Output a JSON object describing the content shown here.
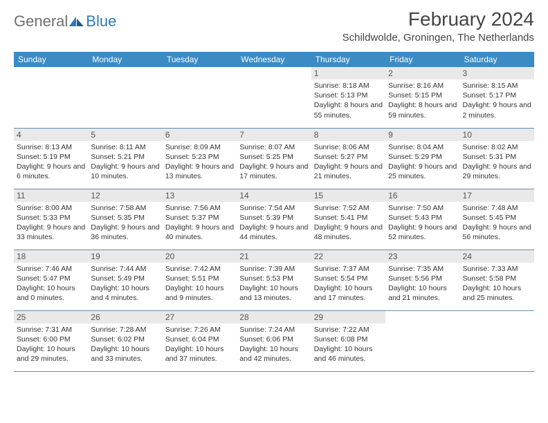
{
  "logo": {
    "general": "General",
    "blue": "Blue"
  },
  "title": "February 2024",
  "location": "Schildwolde, Groningen, The Netherlands",
  "colors": {
    "header_bg": "#3b8bc5",
    "header_fg": "#ffffff",
    "daynum_bg": "#e9e9e9",
    "text": "#333333",
    "logo_gray": "#6f6f6f",
    "logo_blue": "#2f79b9",
    "rule": "#6a8aa5"
  },
  "day_headers": [
    "Sunday",
    "Monday",
    "Tuesday",
    "Wednesday",
    "Thursday",
    "Friday",
    "Saturday"
  ],
  "weeks": [
    [
      null,
      null,
      null,
      null,
      {
        "n": "1",
        "sr": "8:18 AM",
        "ss": "5:13 PM",
        "dl": "8 hours and 55 minutes."
      },
      {
        "n": "2",
        "sr": "8:16 AM",
        "ss": "5:15 PM",
        "dl": "8 hours and 59 minutes."
      },
      {
        "n": "3",
        "sr": "8:15 AM",
        "ss": "5:17 PM",
        "dl": "9 hours and 2 minutes."
      }
    ],
    [
      {
        "n": "4",
        "sr": "8:13 AM",
        "ss": "5:19 PM",
        "dl": "9 hours and 6 minutes."
      },
      {
        "n": "5",
        "sr": "8:11 AM",
        "ss": "5:21 PM",
        "dl": "9 hours and 10 minutes."
      },
      {
        "n": "6",
        "sr": "8:09 AM",
        "ss": "5:23 PM",
        "dl": "9 hours and 13 minutes."
      },
      {
        "n": "7",
        "sr": "8:07 AM",
        "ss": "5:25 PM",
        "dl": "9 hours and 17 minutes."
      },
      {
        "n": "8",
        "sr": "8:06 AM",
        "ss": "5:27 PM",
        "dl": "9 hours and 21 minutes."
      },
      {
        "n": "9",
        "sr": "8:04 AM",
        "ss": "5:29 PM",
        "dl": "9 hours and 25 minutes."
      },
      {
        "n": "10",
        "sr": "8:02 AM",
        "ss": "5:31 PM",
        "dl": "9 hours and 29 minutes."
      }
    ],
    [
      {
        "n": "11",
        "sr": "8:00 AM",
        "ss": "5:33 PM",
        "dl": "9 hours and 33 minutes."
      },
      {
        "n": "12",
        "sr": "7:58 AM",
        "ss": "5:35 PM",
        "dl": "9 hours and 36 minutes."
      },
      {
        "n": "13",
        "sr": "7:56 AM",
        "ss": "5:37 PM",
        "dl": "9 hours and 40 minutes."
      },
      {
        "n": "14",
        "sr": "7:54 AM",
        "ss": "5:39 PM",
        "dl": "9 hours and 44 minutes."
      },
      {
        "n": "15",
        "sr": "7:52 AM",
        "ss": "5:41 PM",
        "dl": "9 hours and 48 minutes."
      },
      {
        "n": "16",
        "sr": "7:50 AM",
        "ss": "5:43 PM",
        "dl": "9 hours and 52 minutes."
      },
      {
        "n": "17",
        "sr": "7:48 AM",
        "ss": "5:45 PM",
        "dl": "9 hours and 56 minutes."
      }
    ],
    [
      {
        "n": "18",
        "sr": "7:46 AM",
        "ss": "5:47 PM",
        "dl": "10 hours and 0 minutes."
      },
      {
        "n": "19",
        "sr": "7:44 AM",
        "ss": "5:49 PM",
        "dl": "10 hours and 4 minutes."
      },
      {
        "n": "20",
        "sr": "7:42 AM",
        "ss": "5:51 PM",
        "dl": "10 hours and 9 minutes."
      },
      {
        "n": "21",
        "sr": "7:39 AM",
        "ss": "5:53 PM",
        "dl": "10 hours and 13 minutes."
      },
      {
        "n": "22",
        "sr": "7:37 AM",
        "ss": "5:54 PM",
        "dl": "10 hours and 17 minutes."
      },
      {
        "n": "23",
        "sr": "7:35 AM",
        "ss": "5:56 PM",
        "dl": "10 hours and 21 minutes."
      },
      {
        "n": "24",
        "sr": "7:33 AM",
        "ss": "5:58 PM",
        "dl": "10 hours and 25 minutes."
      }
    ],
    [
      {
        "n": "25",
        "sr": "7:31 AM",
        "ss": "6:00 PM",
        "dl": "10 hours and 29 minutes."
      },
      {
        "n": "26",
        "sr": "7:28 AM",
        "ss": "6:02 PM",
        "dl": "10 hours and 33 minutes."
      },
      {
        "n": "27",
        "sr": "7:26 AM",
        "ss": "6:04 PM",
        "dl": "10 hours and 37 minutes."
      },
      {
        "n": "28",
        "sr": "7:24 AM",
        "ss": "6:06 PM",
        "dl": "10 hours and 42 minutes."
      },
      {
        "n": "29",
        "sr": "7:22 AM",
        "ss": "6:08 PM",
        "dl": "10 hours and 46 minutes."
      },
      null,
      null
    ]
  ],
  "labels": {
    "sunrise": "Sunrise: ",
    "sunset": "Sunset: ",
    "daylight": "Daylight: "
  }
}
